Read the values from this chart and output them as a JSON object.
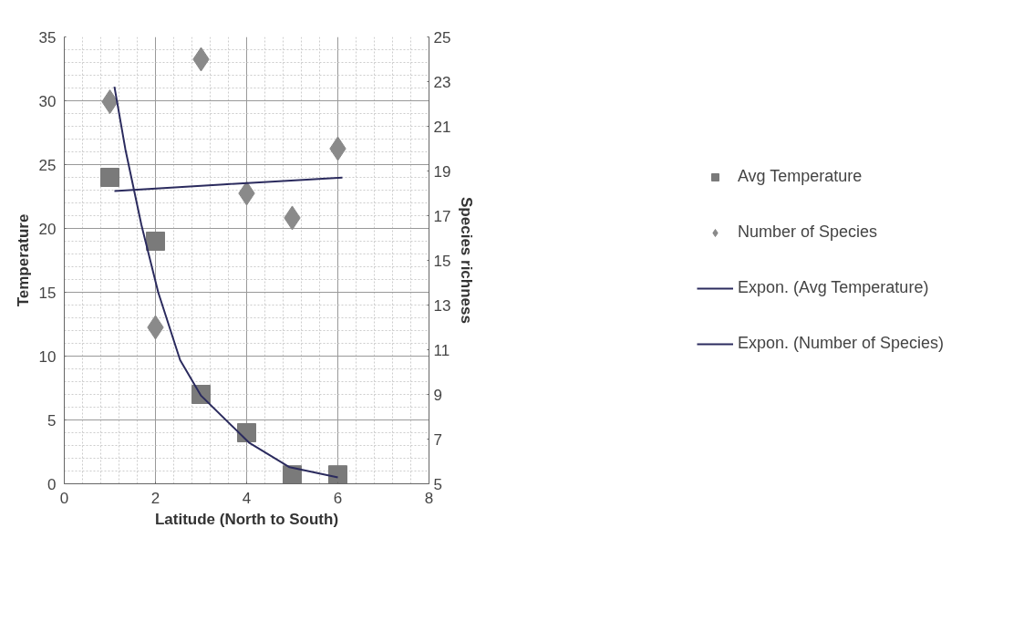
{
  "chart_data": {
    "type": "scatter",
    "xlabel": "Latitude (North to South)",
    "ylabel": "Temperature",
    "y2label": "Species richness",
    "xlim": [
      0,
      8
    ],
    "xticks": [
      0,
      2,
      4,
      6,
      8
    ],
    "ylim": [
      0,
      35
    ],
    "yticks": [
      0,
      5,
      10,
      15,
      20,
      25,
      30,
      35
    ],
    "y2lim": [
      5,
      25
    ],
    "y2ticks": [
      5,
      7,
      9,
      11,
      13,
      15,
      17,
      19,
      21,
      23,
      25
    ],
    "grid": true,
    "legend": "right",
    "series": [
      {
        "name": "Avg Temperature",
        "marker": "square",
        "color": "#7a7a7a",
        "x": [
          1,
          2,
          3,
          4,
          5,
          6
        ],
        "values": [
          24,
          19,
          7,
          4,
          0.7,
          0.7
        ]
      },
      {
        "name": "Number of Species",
        "marker": "diamond",
        "color": "#8a8a8a",
        "axis": "y2",
        "x": [
          1,
          2,
          3,
          4,
          5,
          6
        ],
        "values": [
          22.1,
          12.0,
          24.0,
          18.0,
          16.9,
          20.0
        ]
      },
      {
        "name": "Expon. (Avg Temperature)",
        "type": "line",
        "color": "#2b2b5e",
        "x": [
          1.1,
          1.34,
          1.69,
          2.06,
          2.54,
          3.0,
          4.06,
          4.94,
          6.0
        ],
        "values": [
          31.1,
          26.2,
          20.3,
          15.0,
          9.7,
          6.9,
          3.2,
          1.3,
          0.5
        ]
      },
      {
        "name": "Expon. (Number of Species)",
        "type": "line",
        "color": "#2b2b5e",
        "axis": "y2",
        "x": [
          1.1,
          3.5,
          6.1
        ],
        "values": [
          18.1,
          18.4,
          18.7
        ]
      }
    ]
  }
}
